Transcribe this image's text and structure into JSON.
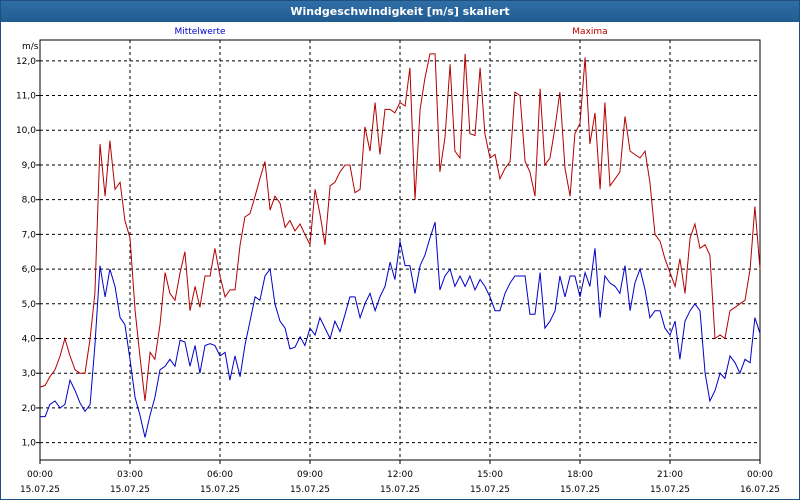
{
  "chart_data": {
    "type": "line",
    "title": "Windgeschwindigkeit [m/s] skaliert",
    "ylabel": "m/s",
    "ylim": [
      0.5,
      12.6
    ],
    "yticks": [
      "1,0",
      "2,0",
      "3,0",
      "4,0",
      "5,0",
      "6,0",
      "7,0",
      "8,0",
      "9,0",
      "10,0",
      "11,0",
      "12,0"
    ],
    "ytick_values": [
      1,
      2,
      3,
      4,
      5,
      6,
      7,
      8,
      9,
      10,
      11,
      12
    ],
    "xlim": [
      0,
      24
    ],
    "xticks": [
      {
        "x": 0,
        "time": "00:00",
        "date": "15.07.25"
      },
      {
        "x": 3,
        "time": "03:00",
        "date": "15.07.25"
      },
      {
        "x": 6,
        "time": "06:00",
        "date": "15.07.25"
      },
      {
        "x": 9,
        "time": "09:00",
        "date": "15.07.25"
      },
      {
        "x": 12,
        "time": "12:00",
        "date": "15.07.25"
      },
      {
        "x": 15,
        "time": "15:00",
        "date": "15.07.25"
      },
      {
        "x": 18,
        "time": "18:00",
        "date": "15.07.25"
      },
      {
        "x": 21,
        "time": "21:00",
        "date": "15.07.25"
      },
      {
        "x": 24,
        "time": "00:00",
        "date": "16.07.25"
      }
    ],
    "grid": true,
    "legend_placement": "top",
    "series": [
      {
        "name": "Mittelwerte",
        "color": "#0000c8",
        "points": [
          [
            0.0,
            1.75
          ],
          [
            0.17,
            1.75
          ],
          [
            0.33,
            2.1
          ],
          [
            0.5,
            2.2
          ],
          [
            0.67,
            2.0
          ],
          [
            0.83,
            2.1
          ],
          [
            1.0,
            2.8
          ],
          [
            1.17,
            2.5
          ],
          [
            1.33,
            2.15
          ],
          [
            1.5,
            1.9
          ],
          [
            1.67,
            2.1
          ],
          [
            1.83,
            3.8
          ],
          [
            2.0,
            6.1
          ],
          [
            2.17,
            5.2
          ],
          [
            2.33,
            6.0
          ],
          [
            2.5,
            5.5
          ],
          [
            2.67,
            4.6
          ],
          [
            2.83,
            4.4
          ],
          [
            3.0,
            3.4
          ],
          [
            3.17,
            2.3
          ],
          [
            3.33,
            1.8
          ],
          [
            3.5,
            1.15
          ],
          [
            3.67,
            1.8
          ],
          [
            3.83,
            2.3
          ],
          [
            4.0,
            3.1
          ],
          [
            4.17,
            3.2
          ],
          [
            4.33,
            3.4
          ],
          [
            4.5,
            3.2
          ],
          [
            4.67,
            3.95
          ],
          [
            4.83,
            3.9
          ],
          [
            5.0,
            3.2
          ],
          [
            5.17,
            3.8
          ],
          [
            5.33,
            3.0
          ],
          [
            5.5,
            3.8
          ],
          [
            5.67,
            3.85
          ],
          [
            5.83,
            3.8
          ],
          [
            6.0,
            3.5
          ],
          [
            6.17,
            3.6
          ],
          [
            6.33,
            2.8
          ],
          [
            6.5,
            3.5
          ],
          [
            6.67,
            2.9
          ],
          [
            6.83,
            3.8
          ],
          [
            7.0,
            4.5
          ],
          [
            7.17,
            5.2
          ],
          [
            7.33,
            5.1
          ],
          [
            7.5,
            5.8
          ],
          [
            7.67,
            6.0
          ],
          [
            7.83,
            5.0
          ],
          [
            8.0,
            4.5
          ],
          [
            8.17,
            4.3
          ],
          [
            8.33,
            3.7
          ],
          [
            8.5,
            3.75
          ],
          [
            8.67,
            4.05
          ],
          [
            8.83,
            3.8
          ],
          [
            9.0,
            4.3
          ],
          [
            9.17,
            4.1
          ],
          [
            9.33,
            4.6
          ],
          [
            9.5,
            4.3
          ],
          [
            9.67,
            4.0
          ],
          [
            9.83,
            4.5
          ],
          [
            10.0,
            4.2
          ],
          [
            10.17,
            4.7
          ],
          [
            10.33,
            5.2
          ],
          [
            10.5,
            5.2
          ],
          [
            10.67,
            4.6
          ],
          [
            10.83,
            5.0
          ],
          [
            11.0,
            5.3
          ],
          [
            11.17,
            4.8
          ],
          [
            11.33,
            5.2
          ],
          [
            11.5,
            5.5
          ],
          [
            11.67,
            6.2
          ],
          [
            11.83,
            5.7
          ],
          [
            12.0,
            6.8
          ],
          [
            12.17,
            6.1
          ],
          [
            12.33,
            6.1
          ],
          [
            12.5,
            5.3
          ],
          [
            12.67,
            6.1
          ],
          [
            12.83,
            6.4
          ],
          [
            13.0,
            6.9
          ],
          [
            13.17,
            7.35
          ],
          [
            13.33,
            5.4
          ],
          [
            13.5,
            5.8
          ],
          [
            13.67,
            6.0
          ],
          [
            13.83,
            5.5
          ],
          [
            14.0,
            5.8
          ],
          [
            14.17,
            5.5
          ],
          [
            14.33,
            5.8
          ],
          [
            14.5,
            5.4
          ],
          [
            14.67,
            5.7
          ],
          [
            14.83,
            5.5
          ],
          [
            15.0,
            5.2
          ],
          [
            15.17,
            4.8
          ],
          [
            15.33,
            4.8
          ],
          [
            15.5,
            5.3
          ],
          [
            15.67,
            5.6
          ],
          [
            15.83,
            5.8
          ],
          [
            16.0,
            5.8
          ],
          [
            16.17,
            5.8
          ],
          [
            16.33,
            4.7
          ],
          [
            16.5,
            4.7
          ],
          [
            16.67,
            5.9
          ],
          [
            16.83,
            4.3
          ],
          [
            17.0,
            4.5
          ],
          [
            17.17,
            4.8
          ],
          [
            17.33,
            5.8
          ],
          [
            17.5,
            5.2
          ],
          [
            17.67,
            5.8
          ],
          [
            17.83,
            5.8
          ],
          [
            18.0,
            5.2
          ],
          [
            18.17,
            5.9
          ],
          [
            18.33,
            5.5
          ],
          [
            18.5,
            6.6
          ],
          [
            18.67,
            4.6
          ],
          [
            18.83,
            5.8
          ],
          [
            19.0,
            5.6
          ],
          [
            19.17,
            5.5
          ],
          [
            19.33,
            5.3
          ],
          [
            19.5,
            6.1
          ],
          [
            19.67,
            4.8
          ],
          [
            19.83,
            5.6
          ],
          [
            20.0,
            6.0
          ],
          [
            20.17,
            5.4
          ],
          [
            20.33,
            4.6
          ],
          [
            20.5,
            4.8
          ],
          [
            20.67,
            4.8
          ],
          [
            20.83,
            4.3
          ],
          [
            21.0,
            4.1
          ],
          [
            21.17,
            4.5
          ],
          [
            21.33,
            3.4
          ],
          [
            21.5,
            4.5
          ],
          [
            21.67,
            4.8
          ],
          [
            21.83,
            5.0
          ],
          [
            22.0,
            4.8
          ],
          [
            22.17,
            3.0
          ],
          [
            22.33,
            2.2
          ],
          [
            22.5,
            2.5
          ],
          [
            22.67,
            3.0
          ],
          [
            22.83,
            2.85
          ],
          [
            23.0,
            3.5
          ],
          [
            23.17,
            3.3
          ],
          [
            23.33,
            3.0
          ],
          [
            23.5,
            3.4
          ],
          [
            23.67,
            3.3
          ],
          [
            23.83,
            4.6
          ],
          [
            24.0,
            4.15
          ]
        ]
      },
      {
        "name": "Maxima",
        "color": "#b40000",
        "points": [
          [
            0.0,
            2.6
          ],
          [
            0.17,
            2.65
          ],
          [
            0.33,
            2.9
          ],
          [
            0.5,
            3.1
          ],
          [
            0.67,
            3.5
          ],
          [
            0.83,
            4.0
          ],
          [
            1.0,
            3.5
          ],
          [
            1.17,
            3.1
          ],
          [
            1.33,
            3.0
          ],
          [
            1.5,
            3.0
          ],
          [
            1.67,
            4.0
          ],
          [
            1.83,
            5.3
          ],
          [
            2.0,
            9.6
          ],
          [
            2.17,
            8.1
          ],
          [
            2.33,
            9.7
          ],
          [
            2.5,
            8.3
          ],
          [
            2.67,
            8.5
          ],
          [
            2.83,
            7.4
          ],
          [
            3.0,
            6.9
          ],
          [
            3.17,
            4.8
          ],
          [
            3.33,
            3.5
          ],
          [
            3.5,
            2.2
          ],
          [
            3.67,
            3.6
          ],
          [
            3.83,
            3.4
          ],
          [
            4.0,
            4.4
          ],
          [
            4.17,
            5.9
          ],
          [
            4.33,
            5.3
          ],
          [
            4.5,
            5.1
          ],
          [
            4.67,
            5.9
          ],
          [
            4.83,
            6.5
          ],
          [
            5.0,
            4.8
          ],
          [
            5.17,
            5.5
          ],
          [
            5.33,
            4.9
          ],
          [
            5.5,
            5.8
          ],
          [
            5.67,
            5.8
          ],
          [
            5.83,
            6.6
          ],
          [
            6.0,
            5.8
          ],
          [
            6.17,
            5.2
          ],
          [
            6.33,
            5.4
          ],
          [
            6.5,
            5.4
          ],
          [
            6.67,
            6.7
          ],
          [
            6.83,
            7.5
          ],
          [
            7.0,
            7.6
          ],
          [
            7.17,
            8.1
          ],
          [
            7.33,
            8.6
          ],
          [
            7.5,
            9.1
          ],
          [
            7.67,
            7.7
          ],
          [
            7.83,
            8.1
          ],
          [
            8.0,
            7.9
          ],
          [
            8.17,
            7.2
          ],
          [
            8.33,
            7.4
          ],
          [
            8.5,
            7.1
          ],
          [
            8.67,
            7.3
          ],
          [
            8.83,
            7.0
          ],
          [
            9.0,
            6.7
          ],
          [
            9.17,
            8.3
          ],
          [
            9.33,
            7.6
          ],
          [
            9.5,
            6.7
          ],
          [
            9.67,
            8.4
          ],
          [
            9.83,
            8.5
          ],
          [
            10.0,
            8.8
          ],
          [
            10.17,
            9.0
          ],
          [
            10.33,
            9.0
          ],
          [
            10.5,
            8.2
          ],
          [
            10.67,
            8.3
          ],
          [
            10.83,
            10.1
          ],
          [
            11.0,
            9.4
          ],
          [
            11.17,
            10.8
          ],
          [
            11.33,
            9.3
          ],
          [
            11.5,
            10.6
          ],
          [
            11.67,
            10.6
          ],
          [
            11.83,
            10.5
          ],
          [
            12.0,
            10.8
          ],
          [
            12.17,
            10.7
          ],
          [
            12.33,
            11.8
          ],
          [
            12.5,
            8.0
          ],
          [
            12.67,
            10.6
          ],
          [
            12.83,
            11.5
          ],
          [
            13.0,
            12.2
          ],
          [
            13.17,
            12.2
          ],
          [
            13.33,
            8.8
          ],
          [
            13.5,
            9.8
          ],
          [
            13.67,
            11.9
          ],
          [
            13.83,
            9.4
          ],
          [
            14.0,
            9.2
          ],
          [
            14.17,
            12.2
          ],
          [
            14.33,
            9.9
          ],
          [
            14.5,
            9.85
          ],
          [
            14.67,
            11.8
          ],
          [
            14.83,
            9.9
          ],
          [
            15.0,
            9.2
          ],
          [
            15.17,
            9.3
          ],
          [
            15.33,
            8.6
          ],
          [
            15.5,
            8.9
          ],
          [
            15.67,
            9.1
          ],
          [
            15.83,
            11.1
          ],
          [
            16.0,
            11.0
          ],
          [
            16.17,
            9.1
          ],
          [
            16.33,
            8.8
          ],
          [
            16.5,
            8.1
          ],
          [
            16.67,
            11.2
          ],
          [
            16.83,
            9.0
          ],
          [
            17.0,
            9.2
          ],
          [
            17.17,
            10.1
          ],
          [
            17.33,
            11.1
          ],
          [
            17.5,
            8.9
          ],
          [
            17.67,
            8.1
          ],
          [
            17.83,
            9.9
          ],
          [
            18.0,
            10.2
          ],
          [
            18.17,
            12.1
          ],
          [
            18.33,
            9.6
          ],
          [
            18.5,
            10.5
          ],
          [
            18.67,
            8.3
          ],
          [
            18.83,
            10.8
          ],
          [
            19.0,
            8.4
          ],
          [
            19.17,
            8.6
          ],
          [
            19.33,
            8.8
          ],
          [
            19.5,
            10.4
          ],
          [
            19.67,
            9.4
          ],
          [
            19.83,
            9.3
          ],
          [
            20.0,
            9.2
          ],
          [
            20.17,
            9.4
          ],
          [
            20.33,
            8.5
          ],
          [
            20.5,
            7.0
          ],
          [
            20.67,
            6.8
          ],
          [
            20.83,
            6.3
          ],
          [
            21.0,
            5.9
          ],
          [
            21.17,
            5.5
          ],
          [
            21.33,
            6.3
          ],
          [
            21.5,
            5.3
          ],
          [
            21.67,
            6.9
          ],
          [
            21.83,
            7.3
          ],
          [
            22.0,
            6.6
          ],
          [
            22.17,
            6.7
          ],
          [
            22.33,
            6.4
          ],
          [
            22.5,
            4.0
          ],
          [
            22.67,
            4.1
          ],
          [
            22.83,
            4.0
          ],
          [
            23.0,
            4.8
          ],
          [
            23.17,
            4.9
          ],
          [
            23.33,
            5.0
          ],
          [
            23.5,
            5.1
          ],
          [
            23.67,
            6.0
          ],
          [
            23.83,
            7.8
          ],
          [
            24.0,
            6.0
          ]
        ]
      }
    ]
  }
}
